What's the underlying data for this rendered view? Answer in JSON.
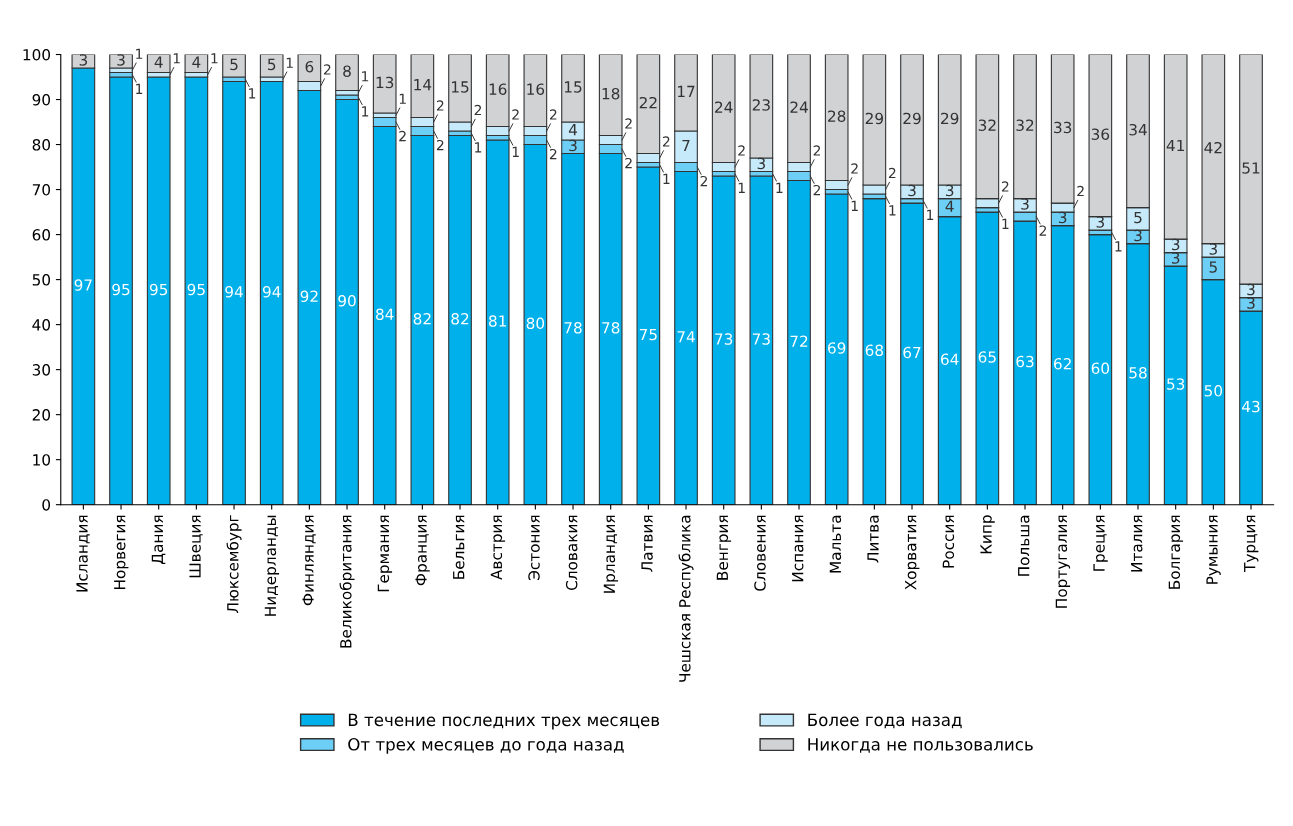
{
  "chart_data": {
    "type": "bar",
    "stacked": true,
    "legend": "bottom",
    "grid": false,
    "categories": [
      "Исландия",
      "Норвегия",
      "Дания",
      "Швеция",
      "Люксембург",
      "Нидерланды",
      "Финляндия",
      "Великобритания",
      "Германия",
      "Франция",
      "Бельгия",
      "Австрия",
      "Эстония",
      "Словакия",
      "Ирландия",
      "Латвия",
      "Чешская Республика",
      "Венгрия",
      "Словения",
      "Испания",
      "Мальта",
      "Литва",
      "Хорватия",
      "Россия",
      "Кипр",
      "Польша",
      "Португалия",
      "Греция",
      "Италия",
      "Болгария",
      "Румыния",
      "Турция"
    ],
    "ylim": [
      0,
      100
    ],
    "yticks": [
      0,
      10,
      20,
      30,
      40,
      50,
      60,
      70,
      80,
      90,
      100
    ],
    "series": [
      {
        "name": "В течение последних трех месяцев",
        "color": "#00b0ea",
        "values": [
          97,
          95,
          95,
          95,
          94,
          94,
          92,
          90,
          84,
          82,
          82,
          81,
          80,
          78,
          78,
          75,
          74,
          73,
          73,
          72,
          69,
          68,
          67,
          64,
          65,
          63,
          62,
          60,
          58,
          53,
          50,
          43
        ],
        "value_labels": [
          "97",
          "95",
          "95",
          "95",
          "94",
          "94",
          "92",
          "90",
          "84",
          "82",
          "82",
          "81",
          "80",
          "78",
          "78",
          "75",
          "74",
          "73",
          "73",
          "72",
          "69",
          "68",
          "67",
          "64",
          "65",
          "63",
          "62",
          "60",
          "58",
          "53",
          "50",
          "43"
        ]
      },
      {
        "name": "От трех месяцев до года назад",
        "color": "#6dcff6",
        "values": [
          0,
          1,
          0,
          0,
          1,
          0,
          0,
          1,
          2,
          2,
          1,
          1,
          2,
          3,
          2,
          1,
          2,
          1,
          1,
          2,
          1,
          1,
          1,
          4,
          1,
          2,
          3,
          1,
          3,
          3,
          5,
          3
        ],
        "value_labels": [
          null,
          "1",
          null,
          null,
          "1",
          null,
          null,
          "1",
          "2",
          "2",
          "1",
          "1",
          "2",
          "3",
          "2",
          "1",
          "2",
          "1",
          "1",
          "2",
          "1",
          "1",
          "1",
          "4",
          "1",
          "2",
          "3",
          "1",
          "3",
          "3",
          "5",
          "3"
        ]
      },
      {
        "name": "Более года назад",
        "color": "#c6eafa",
        "values": [
          0,
          1,
          1,
          1,
          0,
          1,
          2,
          1,
          1,
          2,
          2,
          2,
          2,
          4,
          2,
          2,
          7,
          2,
          3,
          2,
          2,
          2,
          3,
          3,
          2,
          3,
          2,
          3,
          5,
          3,
          3,
          3
        ],
        "value_labels": [
          null,
          "1",
          "1",
          "1",
          null,
          "1",
          "2",
          "1",
          "1",
          "2",
          "2",
          "2",
          "2",
          "4",
          "2",
          "2",
          "7",
          "2",
          "3",
          "2",
          "2",
          "2",
          "3",
          "3",
          "2",
          "3",
          "2",
          "3",
          "5",
          "3",
          "3",
          "3"
        ]
      },
      {
        "name": "Никогда не пользовались",
        "color": "#d1d2d4",
        "values": [
          3,
          3,
          4,
          4,
          5,
          5,
          6,
          8,
          13,
          14,
          15,
          16,
          16,
          15,
          18,
          22,
          17,
          24,
          23,
          24,
          28,
          29,
          29,
          29,
          32,
          32,
          33,
          36,
          34,
          41,
          42,
          51
        ],
        "value_labels": [
          "3",
          "3",
          "4",
          "4",
          "5",
          "5",
          "6",
          "8",
          "13",
          "14",
          "15",
          "16",
          "16",
          "15",
          "18",
          "22",
          "17",
          "24",
          "23",
          "24",
          "28",
          "29",
          "29",
          "29",
          "32",
          "32",
          "33",
          "36",
          "34",
          "41",
          "42",
          "51"
        ]
      }
    ]
  }
}
